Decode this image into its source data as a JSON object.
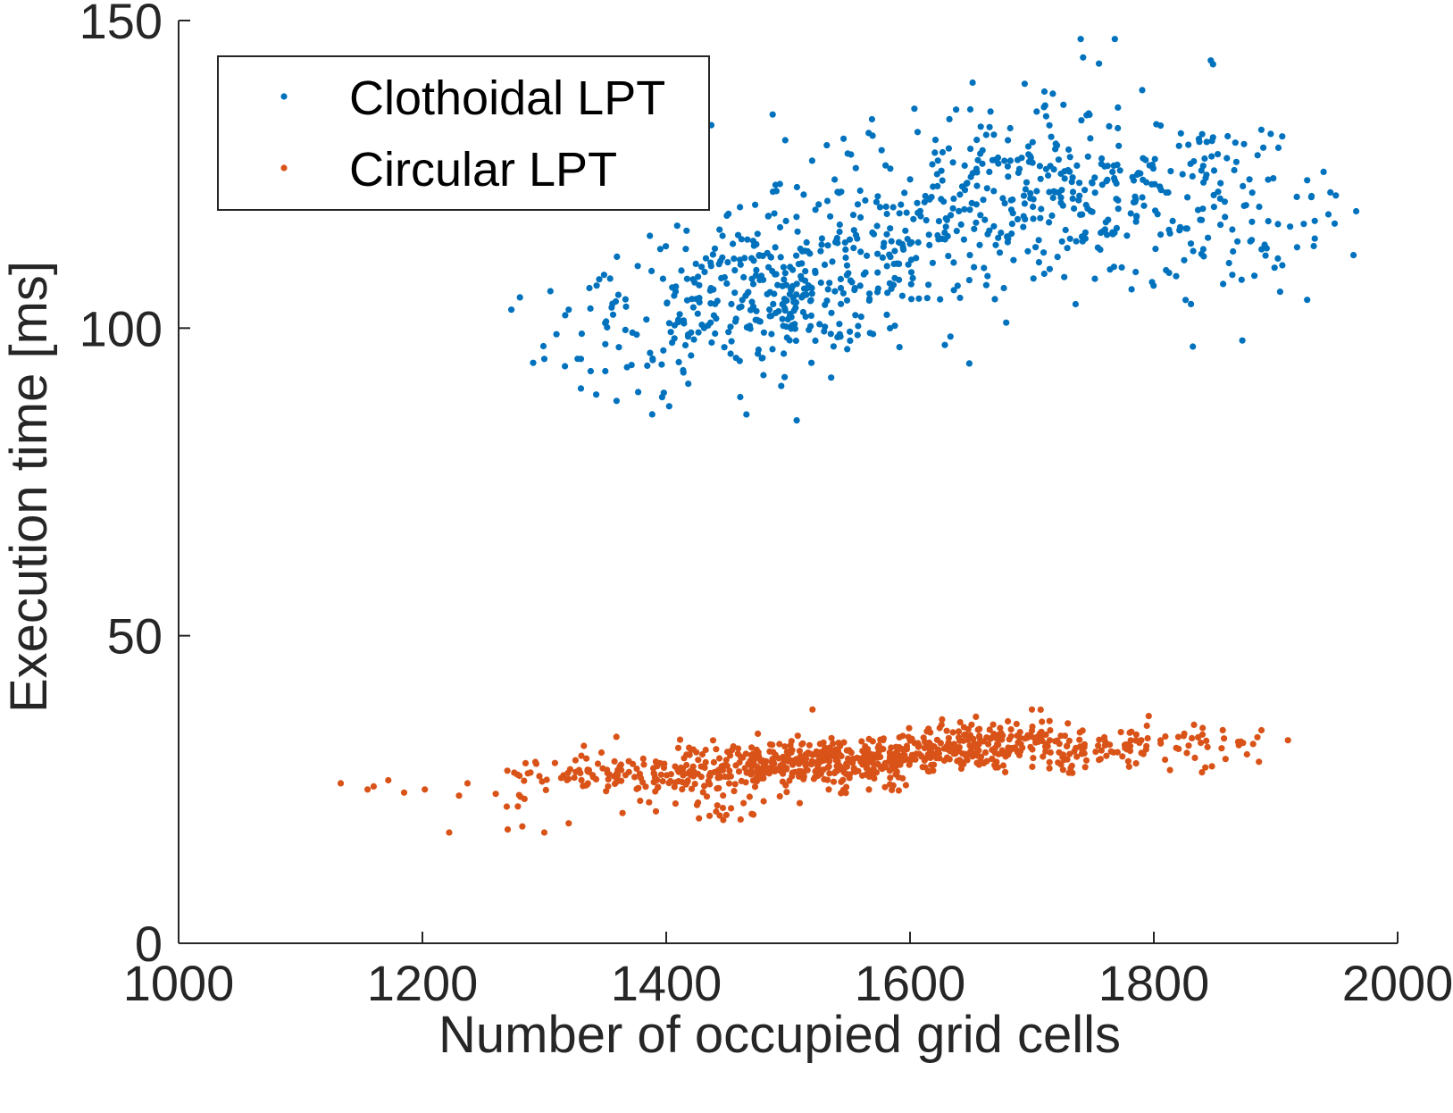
{
  "chart_data": {
    "type": "scatter",
    "title": "",
    "xlabel": "Number of occupied grid cells",
    "ylabel": "Execution time [ms]",
    "xlim": [
      1000,
      2000
    ],
    "ylim": [
      0,
      150
    ],
    "xticks": [
      1000,
      1200,
      1400,
      1600,
      1800,
      2000
    ],
    "yticks": [
      0,
      50,
      100,
      150
    ],
    "xtick_labels": [
      "1000",
      "1200",
      "1400",
      "1600",
      "1800",
      "2000"
    ],
    "ytick_labels": [
      "0",
      "50",
      "100",
      "150"
    ],
    "grid": false,
    "legend_position": "top-left",
    "series": [
      {
        "name": "Clothoidal LPT",
        "color": "#0072BD",
        "points_note": "dense cloud of about 900 points",
        "x_range": [
          1273,
          1966
        ],
        "y_range": [
          85,
          148
        ],
        "trend": {
          "x0": 1300,
          "y0": 103,
          "x1": 1950,
          "y1": 120
        },
        "outliers": [
          [
            1273,
            103
          ],
          [
            1280,
            105
          ],
          [
            1300,
            95
          ],
          [
            1305,
            106
          ],
          [
            1310,
            99
          ],
          [
            1320,
            103
          ],
          [
            1330,
            95
          ],
          [
            1338,
            93
          ],
          [
            1350,
            93
          ],
          [
            1437,
            133
          ],
          [
            1507,
            85
          ],
          [
            1740,
            147
          ],
          [
            1768,
            147
          ],
          [
            1832,
            97
          ],
          [
            1966,
            119
          ],
          [
            1742,
            144
          ],
          [
            1755,
            143
          ]
        ]
      },
      {
        "name": "Circular LPT",
        "color": "#D95319",
        "points_note": "dense band of about 900 points",
        "x_range": [
          1133,
          1910
        ],
        "y_range": [
          18,
          38
        ],
        "trend": {
          "x0": 1200,
          "y0": 26,
          "x1": 1900,
          "y1": 33
        },
        "outliers": [
          [
            1133,
            26
          ],
          [
            1155,
            25
          ],
          [
            1160,
            25.5
          ],
          [
            1172,
            26.5
          ],
          [
            1185,
            24.5
          ],
          [
            1202,
            25
          ],
          [
            1222,
            18
          ],
          [
            1230,
            24
          ],
          [
            1237,
            26
          ],
          [
            1270,
            18.5
          ],
          [
            1282,
            19
          ],
          [
            1300,
            18
          ],
          [
            1320,
            19.5
          ],
          [
            1520,
            38
          ],
          [
            1700,
            38
          ],
          [
            1910,
            33
          ],
          [
            1885,
            33.5
          ]
        ]
      }
    ]
  },
  "legend": {
    "entries": [
      "Clothoidal LPT",
      "Circular LPT"
    ]
  }
}
